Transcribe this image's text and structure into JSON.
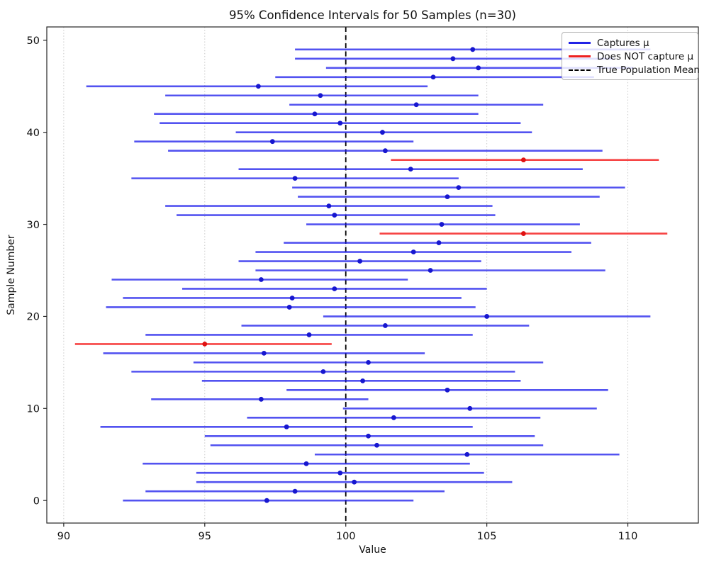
{
  "chart_data": {
    "type": "errorbar",
    "orientation": "horizontal",
    "title": "95% Confidence Intervals for 50 Samples (n=30)",
    "xlabel": "Value",
    "ylabel": "Sample Number",
    "xlim": [
      89.4,
      112.5
    ],
    "ylim": [
      -2.45,
      51.45
    ],
    "xticks": [
      90,
      95,
      100,
      105,
      110
    ],
    "yticks": [
      0,
      10,
      20,
      30,
      40,
      50
    ],
    "grid": "vertical-dotted-at-xticks",
    "true_mean": 100,
    "legend": {
      "position": "upper-right",
      "items": [
        {
          "label": "Captures μ",
          "style": "solid",
          "color": "#2222e6"
        },
        {
          "label": "Does NOT capture μ",
          "style": "solid",
          "color": "#ee2020"
        },
        {
          "label": "True Population Mean",
          "style": "dashed",
          "color": "#000000"
        }
      ]
    },
    "colors": {
      "captures_line": "rgba(25,25,235,0.75)",
      "captures_marker": "#1717cf",
      "misses_line": "rgba(245,35,35,0.85)",
      "misses_marker": "#e01212",
      "mean_line": "#000000",
      "grid": "#c9c9c9",
      "spine": "#262626"
    },
    "samples": [
      {
        "id": 0,
        "lo": 92.1,
        "mean": 97.2,
        "hi": 102.4,
        "captures": true
      },
      {
        "id": 1,
        "lo": 92.9,
        "mean": 98.2,
        "hi": 103.5,
        "captures": true
      },
      {
        "id": 2,
        "lo": 94.7,
        "mean": 100.3,
        "hi": 105.9,
        "captures": true
      },
      {
        "id": 3,
        "lo": 94.7,
        "mean": 99.8,
        "hi": 104.9,
        "captures": true
      },
      {
        "id": 4,
        "lo": 92.8,
        "mean": 98.6,
        "hi": 104.4,
        "captures": true
      },
      {
        "id": 5,
        "lo": 98.9,
        "mean": 104.3,
        "hi": 109.7,
        "captures": true
      },
      {
        "id": 6,
        "lo": 95.2,
        "mean": 101.1,
        "hi": 107.0,
        "captures": true
      },
      {
        "id": 7,
        "lo": 95.0,
        "mean": 100.8,
        "hi": 106.7,
        "captures": true
      },
      {
        "id": 8,
        "lo": 91.3,
        "mean": 97.9,
        "hi": 104.5,
        "captures": true
      },
      {
        "id": 9,
        "lo": 96.5,
        "mean": 101.7,
        "hi": 106.9,
        "captures": true
      },
      {
        "id": 10,
        "lo": 99.9,
        "mean": 104.4,
        "hi": 108.9,
        "captures": true
      },
      {
        "id": 11,
        "lo": 93.1,
        "mean": 97.0,
        "hi": 100.8,
        "captures": true
      },
      {
        "id": 12,
        "lo": 97.9,
        "mean": 103.6,
        "hi": 109.3,
        "captures": true
      },
      {
        "id": 13,
        "lo": 94.9,
        "mean": 100.6,
        "hi": 106.2,
        "captures": true
      },
      {
        "id": 14,
        "lo": 92.4,
        "mean": 99.2,
        "hi": 106.0,
        "captures": true
      },
      {
        "id": 15,
        "lo": 94.6,
        "mean": 100.8,
        "hi": 107.0,
        "captures": true
      },
      {
        "id": 16,
        "lo": 91.4,
        "mean": 97.1,
        "hi": 102.8,
        "captures": true
      },
      {
        "id": 17,
        "lo": 90.4,
        "mean": 95.0,
        "hi": 99.5,
        "captures": false
      },
      {
        "id": 18,
        "lo": 92.9,
        "mean": 98.7,
        "hi": 104.5,
        "captures": true
      },
      {
        "id": 19,
        "lo": 96.3,
        "mean": 101.4,
        "hi": 106.5,
        "captures": true
      },
      {
        "id": 20,
        "lo": 99.2,
        "mean": 105.0,
        "hi": 110.8,
        "captures": true
      },
      {
        "id": 21,
        "lo": 91.5,
        "mean": 98.0,
        "hi": 104.6,
        "captures": true
      },
      {
        "id": 22,
        "lo": 92.1,
        "mean": 98.1,
        "hi": 104.1,
        "captures": true
      },
      {
        "id": 23,
        "lo": 94.2,
        "mean": 99.6,
        "hi": 105.0,
        "captures": true
      },
      {
        "id": 24,
        "lo": 91.7,
        "mean": 97.0,
        "hi": 102.2,
        "captures": true
      },
      {
        "id": 25,
        "lo": 96.8,
        "mean": 103.0,
        "hi": 109.2,
        "captures": true
      },
      {
        "id": 26,
        "lo": 96.2,
        "mean": 100.5,
        "hi": 104.8,
        "captures": true
      },
      {
        "id": 27,
        "lo": 96.8,
        "mean": 102.4,
        "hi": 108.0,
        "captures": true
      },
      {
        "id": 28,
        "lo": 97.8,
        "mean": 103.3,
        "hi": 108.7,
        "captures": true
      },
      {
        "id": 29,
        "lo": 101.2,
        "mean": 106.3,
        "hi": 111.4,
        "captures": false
      },
      {
        "id": 30,
        "lo": 98.6,
        "mean": 103.4,
        "hi": 108.3,
        "captures": true
      },
      {
        "id": 31,
        "lo": 94.0,
        "mean": 99.6,
        "hi": 105.3,
        "captures": true
      },
      {
        "id": 32,
        "lo": 93.6,
        "mean": 99.4,
        "hi": 105.2,
        "captures": true
      },
      {
        "id": 33,
        "lo": 98.3,
        "mean": 103.6,
        "hi": 109.0,
        "captures": true
      },
      {
        "id": 34,
        "lo": 98.1,
        "mean": 104.0,
        "hi": 109.9,
        "captures": true
      },
      {
        "id": 35,
        "lo": 92.4,
        "mean": 98.2,
        "hi": 104.0,
        "captures": true
      },
      {
        "id": 36,
        "lo": 96.2,
        "mean": 102.3,
        "hi": 108.4,
        "captures": true
      },
      {
        "id": 37,
        "lo": 101.6,
        "mean": 106.3,
        "hi": 111.1,
        "captures": false
      },
      {
        "id": 38,
        "lo": 93.7,
        "mean": 101.4,
        "hi": 109.1,
        "captures": true
      },
      {
        "id": 39,
        "lo": 92.5,
        "mean": 97.4,
        "hi": 102.4,
        "captures": true
      },
      {
        "id": 40,
        "lo": 96.1,
        "mean": 101.3,
        "hi": 106.6,
        "captures": true
      },
      {
        "id": 41,
        "lo": 93.4,
        "mean": 99.8,
        "hi": 106.2,
        "captures": true
      },
      {
        "id": 42,
        "lo": 93.2,
        "mean": 98.9,
        "hi": 104.7,
        "captures": true
      },
      {
        "id": 43,
        "lo": 98.0,
        "mean": 102.5,
        "hi": 107.0,
        "captures": true
      },
      {
        "id": 44,
        "lo": 93.6,
        "mean": 99.1,
        "hi": 104.7,
        "captures": true
      },
      {
        "id": 45,
        "lo": 90.8,
        "mean": 96.9,
        "hi": 102.9,
        "captures": true
      },
      {
        "id": 46,
        "lo": 97.5,
        "mean": 103.1,
        "hi": 108.8,
        "captures": true
      },
      {
        "id": 47,
        "lo": 99.3,
        "mean": 104.7,
        "hi": 110.2,
        "captures": true
      },
      {
        "id": 48,
        "lo": 98.2,
        "mean": 103.8,
        "hi": 109.5,
        "captures": true
      },
      {
        "id": 49,
        "lo": 98.2,
        "mean": 104.5,
        "hi": 110.8,
        "captures": true
      }
    ]
  }
}
